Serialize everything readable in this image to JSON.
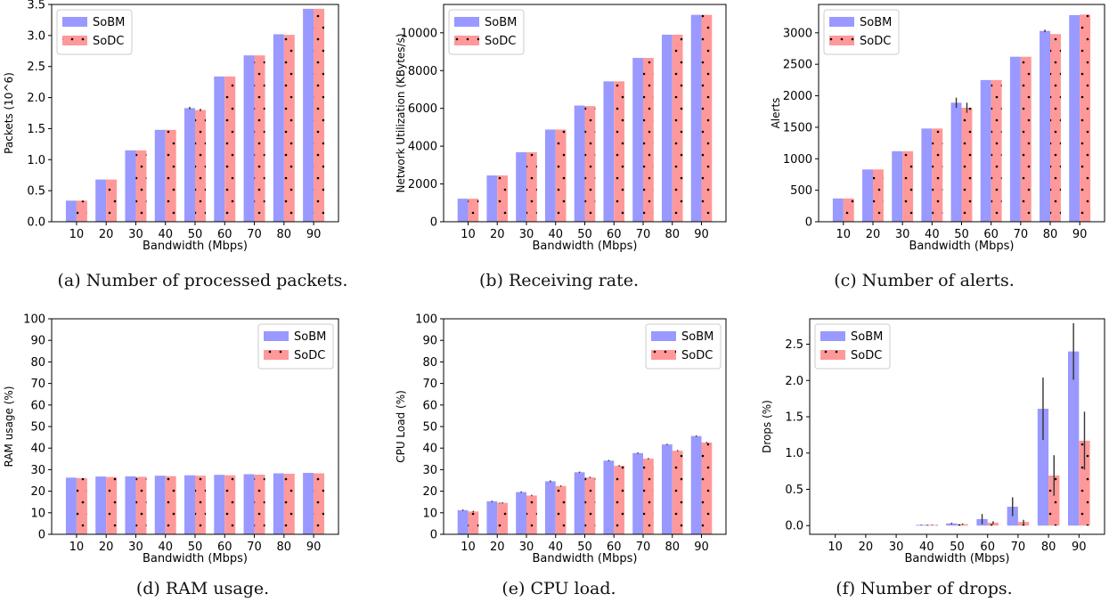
{
  "series_colors": {
    "SoBM": "#9999ff",
    "SoDC": "#ff9999"
  },
  "hatch": {
    "SoDC": "dots"
  },
  "chart_data": [
    {
      "type": "bar",
      "panel": "a",
      "caption": "(a) Number of processed packets.",
      "xlabel": "Bandwidth (Mbps)",
      "ylabel": "Packets (10^6)",
      "categories": [
        "10",
        "20",
        "30",
        "40",
        "50",
        "60",
        "70",
        "80",
        "90"
      ],
      "ylim": [
        0,
        3.5
      ],
      "yticks": [
        "0.0",
        "0.5",
        "1.0",
        "1.5",
        "2.0",
        "2.5",
        "3.0",
        "3.5"
      ],
      "legend": "top-left",
      "grid": false,
      "series": [
        {
          "name": "SoBM",
          "values": [
            0.34,
            0.68,
            1.15,
            1.48,
            1.83,
            2.34,
            2.68,
            3.02,
            3.43
          ],
          "err": [
            0,
            0,
            0,
            0,
            0.02,
            0,
            0,
            0,
            0
          ]
        },
        {
          "name": "SoDC",
          "values": [
            0.34,
            0.68,
            1.15,
            1.48,
            1.8,
            2.34,
            2.68,
            3.01,
            3.43
          ],
          "err": [
            0,
            0,
            0,
            0,
            0.02,
            0,
            0,
            0,
            0
          ]
        }
      ]
    },
    {
      "type": "bar",
      "panel": "b",
      "caption": "(b) Receiving rate.",
      "xlabel": "Bandwidth (Mbps)",
      "ylabel": "Network Utilization (KBytes/s)",
      "categories": [
        "10",
        "20",
        "30",
        "40",
        "50",
        "60",
        "70",
        "80",
        "90"
      ],
      "ylim": [
        0,
        11500
      ],
      "yticks": [
        "0",
        "2000",
        "4000",
        "6000",
        "8000",
        "10000"
      ],
      "legend": "top-left",
      "grid": false,
      "series": [
        {
          "name": "SoBM",
          "values": [
            1220,
            2450,
            3680,
            4880,
            6150,
            7430,
            8670,
            9900,
            10950
          ],
          "err": [
            0,
            0,
            0,
            0,
            0,
            0,
            0,
            0,
            0
          ]
        },
        {
          "name": "SoDC",
          "values": [
            1220,
            2450,
            3680,
            4880,
            6120,
            7430,
            8670,
            9900,
            10950
          ],
          "err": [
            0,
            0,
            0,
            0,
            0,
            0,
            0,
            0,
            0
          ]
        }
      ]
    },
    {
      "type": "bar",
      "panel": "c",
      "caption": "(c) Number of alerts.",
      "xlabel": "Bandwidth (Mbps)",
      "ylabel": "Alerts",
      "categories": [
        "10",
        "20",
        "30",
        "40",
        "50",
        "60",
        "70",
        "80",
        "90"
      ],
      "ylim": [
        0,
        3450
      ],
      "yticks": [
        "0",
        "500",
        "1000",
        "1500",
        "2000",
        "2500",
        "3000"
      ],
      "legend": "top-left",
      "grid": false,
      "series": [
        {
          "name": "SoBM",
          "values": [
            370,
            830,
            1120,
            1480,
            1890,
            2250,
            2620,
            3030,
            3280
          ],
          "err": [
            0,
            0,
            0,
            0,
            80,
            0,
            0,
            20,
            0
          ]
        },
        {
          "name": "SoDC",
          "values": [
            370,
            830,
            1120,
            1480,
            1810,
            2250,
            2620,
            2980,
            3290
          ],
          "err": [
            0,
            0,
            0,
            0,
            80,
            0,
            0,
            0,
            0
          ]
        }
      ]
    },
    {
      "type": "bar",
      "panel": "d",
      "caption": "(d) RAM usage.",
      "xlabel": "Bandwidth (Mbps)",
      "ylabel": "RAM usage (%)",
      "categories": [
        "10",
        "20",
        "30",
        "40",
        "50",
        "60",
        "70",
        "80",
        "90"
      ],
      "ylim": [
        0,
        100
      ],
      "yticks": [
        "0",
        "10",
        "20",
        "30",
        "40",
        "50",
        "60",
        "70",
        "80",
        "90",
        "100"
      ],
      "legend": "top-right",
      "grid": false,
      "series": [
        {
          "name": "SoBM",
          "values": [
            26.3,
            26.8,
            26.9,
            27.2,
            27.4,
            27.6,
            27.9,
            28.3,
            28.5
          ],
          "err": [
            0,
            0,
            0,
            0,
            0,
            0,
            0,
            0,
            0
          ]
        },
        {
          "name": "SoDC",
          "values": [
            26.1,
            26.6,
            26.7,
            27.0,
            27.2,
            27.4,
            27.7,
            28.1,
            28.3
          ],
          "err": [
            0,
            0,
            0,
            0,
            0,
            0,
            0,
            0,
            0
          ]
        }
      ]
    },
    {
      "type": "bar",
      "panel": "e",
      "caption": "(e) CPU load.",
      "xlabel": "Bandwidth (Mbps)",
      "ylabel": "CPU Load (%)",
      "categories": [
        "10",
        "20",
        "30",
        "40",
        "50",
        "60",
        "70",
        "80",
        "90"
      ],
      "ylim": [
        0,
        100
      ],
      "yticks": [
        "0",
        "10",
        "20",
        "30",
        "40",
        "50",
        "60",
        "70",
        "80",
        "90",
        "100"
      ],
      "legend": "top-right",
      "grid": false,
      "series": [
        {
          "name": "SoBM",
          "values": [
            11.2,
            15.3,
            19.6,
            24.6,
            28.8,
            34.2,
            37.7,
            41.7,
            45.6
          ],
          "err": [
            0.3,
            0.3,
            0.3,
            0.4,
            0.3,
            0.3,
            0.3,
            0.3,
            0.3
          ]
        },
        {
          "name": "SoDC",
          "values": [
            10.6,
            14.6,
            18.0,
            22.4,
            26.4,
            31.8,
            35.1,
            38.8,
            42.6
          ],
          "err": [
            0.3,
            0.3,
            0.3,
            0.3,
            0.3,
            0.3,
            0.3,
            0.3,
            0.3
          ]
        }
      ]
    },
    {
      "type": "bar",
      "panel": "f",
      "caption": "(f) Number of drops.",
      "xlabel": "Bandwidth (Mbps)",
      "ylabel": "Drops (%)",
      "categories": [
        "10",
        "20",
        "30",
        "40",
        "50",
        "60",
        "70",
        "80",
        "90"
      ],
      "ylim": [
        -0.12,
        2.85
      ],
      "yticks": [
        "0.0",
        "0.5",
        "1.0",
        "1.5",
        "2.0",
        "2.5"
      ],
      "legend": "top-left",
      "grid": false,
      "series": [
        {
          "name": "SoBM",
          "values": [
            0,
            0,
            0,
            0.01,
            0.03,
            0.09,
            0.26,
            1.61,
            2.4
          ],
          "err": [
            0,
            0,
            0,
            0.005,
            0.01,
            0.07,
            0.13,
            0.43,
            0.39
          ]
        },
        {
          "name": "SoDC",
          "values": [
            0,
            0,
            0,
            0.01,
            0.02,
            0.04,
            0.05,
            0.69,
            1.17
          ],
          "err": [
            0,
            0,
            0,
            0.005,
            0.01,
            0.02,
            0.03,
            0.28,
            0.4
          ]
        }
      ]
    }
  ]
}
